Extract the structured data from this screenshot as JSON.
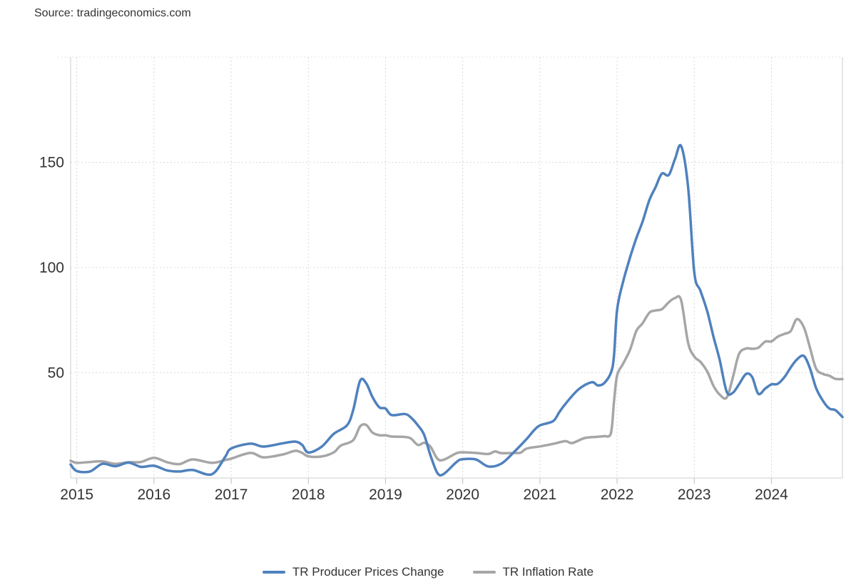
{
  "source": "Source: tradingeconomics.com",
  "chart_data": {
    "type": "line",
    "title": "",
    "xlabel": "",
    "ylabel": "",
    "x_range": [
      2014.92,
      2024.83
    ],
    "ylim": [
      0,
      200
    ],
    "x_ticks": [
      2015,
      2016,
      2017,
      2018,
      2019,
      2020,
      2021,
      2022,
      2023,
      2024
    ],
    "y_ticks": [
      50,
      100,
      150
    ],
    "grid": true,
    "legend_position": "bottom-center",
    "series": [
      {
        "name": "TR Producer Prices Change",
        "color": "#4f81bd",
        "points": [
          [
            2014.92,
            6.4
          ],
          [
            2015.0,
            3.3
          ],
          [
            2015.17,
            3.1
          ],
          [
            2015.33,
            6.7
          ],
          [
            2015.5,
            5.6
          ],
          [
            2015.67,
            7.3
          ],
          [
            2015.83,
            5.3
          ],
          [
            2016.0,
            5.8
          ],
          [
            2016.17,
            3.6
          ],
          [
            2016.33,
            3.1
          ],
          [
            2016.5,
            3.8
          ],
          [
            2016.75,
            1.8
          ],
          [
            2016.92,
            9.9
          ],
          [
            2017.0,
            14.0
          ],
          [
            2017.25,
            16.3
          ],
          [
            2017.42,
            14.9
          ],
          [
            2017.67,
            16.5
          ],
          [
            2017.83,
            17.3
          ],
          [
            2017.92,
            15.7
          ],
          [
            2018.0,
            12.1
          ],
          [
            2018.17,
            14.8
          ],
          [
            2018.33,
            21.0
          ],
          [
            2018.5,
            25.0
          ],
          [
            2018.58,
            32.1
          ],
          [
            2018.67,
            46.2
          ],
          [
            2018.75,
            45.0
          ],
          [
            2018.83,
            38.5
          ],
          [
            2018.92,
            33.6
          ],
          [
            2019.0,
            33.0
          ],
          [
            2019.08,
            29.9
          ],
          [
            2019.25,
            30.4
          ],
          [
            2019.33,
            28.7
          ],
          [
            2019.42,
            25.0
          ],
          [
            2019.5,
            20.5
          ],
          [
            2019.58,
            11.0
          ],
          [
            2019.67,
            2.5
          ],
          [
            2019.75,
            1.8
          ],
          [
            2019.92,
            7.6
          ],
          [
            2020.0,
            8.9
          ],
          [
            2020.17,
            8.8
          ],
          [
            2020.33,
            5.5
          ],
          [
            2020.5,
            6.8
          ],
          [
            2020.67,
            12.5
          ],
          [
            2020.83,
            18.6
          ],
          [
            2020.92,
            22.5
          ],
          [
            2021.0,
            25.0
          ],
          [
            2021.17,
            27.0
          ],
          [
            2021.25,
            31.2
          ],
          [
            2021.33,
            35.2
          ],
          [
            2021.5,
            42.1
          ],
          [
            2021.67,
            45.5
          ],
          [
            2021.75,
            44.0
          ],
          [
            2021.83,
            45.0
          ],
          [
            2021.92,
            50.0
          ],
          [
            2021.96,
            58.0
          ],
          [
            2022.0,
            79.9
          ],
          [
            2022.08,
            93.5
          ],
          [
            2022.17,
            105.0
          ],
          [
            2022.25,
            114.0
          ],
          [
            2022.33,
            121.8
          ],
          [
            2022.42,
            132.2
          ],
          [
            2022.5,
            138.3
          ],
          [
            2022.58,
            144.6
          ],
          [
            2022.67,
            144.0
          ],
          [
            2022.75,
            151.5
          ],
          [
            2022.83,
            157.7
          ],
          [
            2022.92,
            138.3
          ],
          [
            2023.0,
            97.7
          ],
          [
            2023.08,
            89.0
          ],
          [
            2023.17,
            79.0
          ],
          [
            2023.25,
            67.0
          ],
          [
            2023.33,
            56.0
          ],
          [
            2023.42,
            41.0
          ],
          [
            2023.5,
            40.5
          ],
          [
            2023.58,
            44.5
          ],
          [
            2023.67,
            49.4
          ],
          [
            2023.75,
            48.0
          ],
          [
            2023.83,
            40.0
          ],
          [
            2023.92,
            42.5
          ],
          [
            2024.0,
            44.5
          ],
          [
            2024.08,
            44.7
          ],
          [
            2024.17,
            48.0
          ],
          [
            2024.25,
            52.5
          ],
          [
            2024.33,
            56.3
          ],
          [
            2024.42,
            58.0
          ],
          [
            2024.5,
            52.0
          ],
          [
            2024.58,
            42.6
          ],
          [
            2024.67,
            36.5
          ],
          [
            2024.75,
            33.0
          ],
          [
            2024.83,
            32.2
          ],
          [
            2024.92,
            29.0
          ]
        ]
      },
      {
        "name": "TR Inflation Rate",
        "color": "#a6a6a6",
        "points": [
          [
            2014.92,
            8.2
          ],
          [
            2015.0,
            7.2
          ],
          [
            2015.17,
            7.6
          ],
          [
            2015.33,
            7.9
          ],
          [
            2015.5,
            6.7
          ],
          [
            2015.67,
            7.5
          ],
          [
            2015.83,
            7.6
          ],
          [
            2016.0,
            9.6
          ],
          [
            2016.17,
            7.5
          ],
          [
            2016.33,
            6.6
          ],
          [
            2016.5,
            8.8
          ],
          [
            2016.75,
            7.2
          ],
          [
            2016.92,
            8.5
          ],
          [
            2017.0,
            9.2
          ],
          [
            2017.25,
            11.9
          ],
          [
            2017.42,
            9.8
          ],
          [
            2017.67,
            11.2
          ],
          [
            2017.83,
            12.9
          ],
          [
            2017.92,
            11.9
          ],
          [
            2018.0,
            10.3
          ],
          [
            2018.17,
            10.2
          ],
          [
            2018.33,
            12.2
          ],
          [
            2018.42,
            15.4
          ],
          [
            2018.58,
            17.9
          ],
          [
            2018.67,
            24.5
          ],
          [
            2018.75,
            25.2
          ],
          [
            2018.83,
            21.6
          ],
          [
            2018.92,
            20.3
          ],
          [
            2019.0,
            20.3
          ],
          [
            2019.08,
            19.7
          ],
          [
            2019.25,
            19.5
          ],
          [
            2019.33,
            18.7
          ],
          [
            2019.42,
            15.7
          ],
          [
            2019.5,
            16.7
          ],
          [
            2019.58,
            15.0
          ],
          [
            2019.67,
            9.3
          ],
          [
            2019.75,
            8.6
          ],
          [
            2019.92,
            11.8
          ],
          [
            2020.0,
            12.2
          ],
          [
            2020.17,
            11.9
          ],
          [
            2020.33,
            11.4
          ],
          [
            2020.42,
            12.6
          ],
          [
            2020.5,
            11.8
          ],
          [
            2020.67,
            11.9
          ],
          [
            2020.75,
            12.0
          ],
          [
            2020.83,
            14.0
          ],
          [
            2021.0,
            15.0
          ],
          [
            2021.17,
            16.2
          ],
          [
            2021.33,
            17.5
          ],
          [
            2021.42,
            16.6
          ],
          [
            2021.58,
            19.0
          ],
          [
            2021.75,
            19.6
          ],
          [
            2021.83,
            19.9
          ],
          [
            2021.92,
            21.3
          ],
          [
            2021.96,
            36.1
          ],
          [
            2022.0,
            48.7
          ],
          [
            2022.08,
            54.4
          ],
          [
            2022.17,
            61.1
          ],
          [
            2022.25,
            69.9
          ],
          [
            2022.33,
            73.5
          ],
          [
            2022.42,
            78.6
          ],
          [
            2022.5,
            79.6
          ],
          [
            2022.58,
            80.2
          ],
          [
            2022.67,
            83.5
          ],
          [
            2022.75,
            85.5
          ],
          [
            2022.83,
            84.4
          ],
          [
            2022.92,
            64.3
          ],
          [
            2023.0,
            57.7
          ],
          [
            2023.08,
            55.2
          ],
          [
            2023.17,
            50.5
          ],
          [
            2023.25,
            43.7
          ],
          [
            2023.33,
            39.6
          ],
          [
            2023.42,
            38.2
          ],
          [
            2023.5,
            47.8
          ],
          [
            2023.58,
            58.9
          ],
          [
            2023.67,
            61.5
          ],
          [
            2023.75,
            61.4
          ],
          [
            2023.83,
            61.9
          ],
          [
            2023.92,
            64.8
          ],
          [
            2024.0,
            64.9
          ],
          [
            2024.08,
            67.1
          ],
          [
            2024.17,
            68.5
          ],
          [
            2024.25,
            69.8
          ],
          [
            2024.33,
            75.5
          ],
          [
            2024.42,
            71.6
          ],
          [
            2024.5,
            61.8
          ],
          [
            2024.58,
            51.9
          ],
          [
            2024.67,
            49.4
          ],
          [
            2024.75,
            48.6
          ],
          [
            2024.83,
            47.1
          ],
          [
            2024.92,
            47.0
          ]
        ]
      }
    ]
  }
}
